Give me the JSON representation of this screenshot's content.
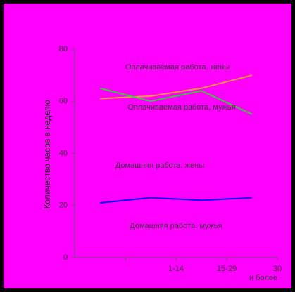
{
  "chart_data": {
    "type": "line",
    "y_label": "Количество часов в неделю",
    "categories": [
      null,
      "1-14",
      "15-29",
      "30 и более"
    ],
    "series": [
      {
        "color": "#ff9933",
        "values": [
          61,
          62,
          65,
          70
        ]
      },
      {
        "color": "#33cc33",
        "values": [
          65,
          60,
          64,
          55
        ]
      },
      {
        "color": "#0000ff",
        "values": [
          21,
          23,
          22,
          23
        ]
      }
    ],
    "annotations": [
      "Оплачиваемая работа, жены",
      "Оплачиваемая работа, мужья",
      "Домашняя работа, жены",
      "Домашняя работа, мужья"
    ],
    "ylim": [
      0,
      80
    ],
    "yticks": [
      0,
      20,
      40,
      60,
      80
    ],
    "grid": false
  }
}
